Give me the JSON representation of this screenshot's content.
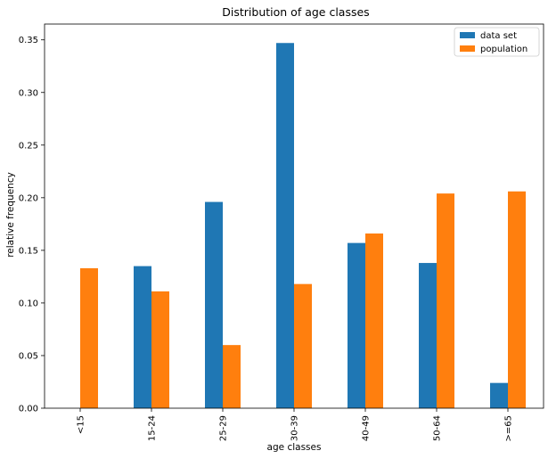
{
  "chart_data": {
    "type": "bar",
    "title": "Distribution of age classes",
    "xlabel": "age classes",
    "ylabel": "relative frequency",
    "categories": [
      "<15",
      "15-24",
      "25-29",
      "30-39",
      "40-49",
      "50-64",
      ">=65"
    ],
    "series": [
      {
        "name": "data set",
        "color": "#1f77b4",
        "values": [
          0.0,
          0.135,
          0.196,
          0.347,
          0.157,
          0.138,
          0.024
        ]
      },
      {
        "name": "population",
        "color": "#ff7f0e",
        "values": [
          0.133,
          0.111,
          0.06,
          0.118,
          0.166,
          0.204,
          0.206
        ]
      }
    ],
    "ylim": [
      0,
      0.365
    ],
    "yticks": [
      0.0,
      0.05,
      0.1,
      0.15,
      0.2,
      0.25,
      0.3,
      0.35
    ],
    "ytick_labels": [
      "0.00",
      "0.05",
      "0.10",
      "0.15",
      "0.20",
      "0.25",
      "0.30",
      "0.35"
    ],
    "grid": false,
    "legend": "top-right"
  }
}
